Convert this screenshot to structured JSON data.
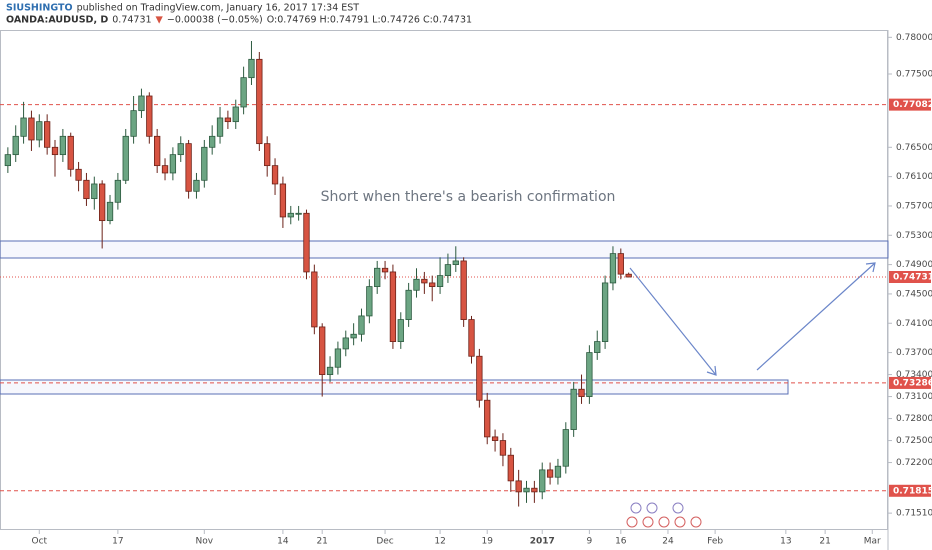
{
  "chart_data": {
    "type": "candlestick",
    "header": {
      "author": "SIUSHINGTO",
      "published": "published on TradingView.com, January 16, 2017 17:34 EST",
      "symbol": "OANDA:AUDUSD, D",
      "last": "0.74731",
      "arrow": "▼",
      "change": "−0.00038 (−0.05%)",
      "ohlc": "O:0.74769 H:0.74791 L:0.74726 C:0.74731"
    },
    "annotation": "Short when there's a bearish confirmation",
    "categories": [
      null,
      null,
      null,
      null,
      "Oct",
      null,
      null,
      null,
      null,
      null,
      null,
      null,
      null,
      null,
      "17",
      null,
      null,
      null,
      null,
      null,
      null,
      null,
      null,
      null,
      null,
      "Nov",
      null,
      null,
      null,
      null,
      null,
      null,
      null,
      null,
      null,
      "14",
      null,
      null,
      null,
      null,
      "21",
      null,
      null,
      null,
      null,
      null,
      null,
      null,
      "Dec",
      null,
      null,
      null,
      null,
      null,
      null,
      "12",
      null,
      null,
      null,
      null,
      null,
      "19",
      null,
      null,
      null,
      null,
      null,
      null,
      "2017",
      null,
      null,
      null,
      null,
      null,
      "9",
      null,
      null,
      null,
      "16",
      null,
      null,
      null,
      null,
      null,
      "24",
      null,
      null,
      null,
      null,
      null,
      "Feb",
      null,
      null,
      null,
      null,
      null,
      null,
      null,
      null,
      "13",
      null,
      null,
      null,
      null,
      "21",
      null,
      null,
      null,
      null,
      null,
      "Mar",
      null
    ],
    "open": [
      0.7625,
      0.764,
      0.7665,
      0.769,
      0.766,
      0.7685,
      0.765,
      0.764,
      0.7665,
      0.762,
      0.7605,
      0.758,
      0.76,
      0.755,
      0.7575,
      0.7605,
      0.7665,
      0.77,
      0.772,
      0.7665,
      0.7625,
      0.7615,
      0.764,
      0.7655,
      0.759,
      0.7605,
      0.765,
      0.7665,
      0.769,
      0.7685,
      0.7705,
      0.7745,
      0.777,
      0.7655,
      0.7625,
      0.76,
      0.7555,
      0.756,
      0.756,
      0.748,
      0.7405,
      0.734,
      0.735,
      0.7375,
      0.739,
      0.7395,
      0.742,
      0.746,
      0.7485,
      0.748,
      0.7385,
      0.7415,
      0.7455,
      0.747,
      0.7465,
      0.746,
      0.7475,
      0.749,
      0.7495,
      0.7415,
      0.7365,
      0.7305,
      0.7255,
      0.725,
      0.723,
      0.7195,
      0.718,
      0.7185,
      0.718,
      0.721,
      0.72,
      0.7215,
      0.7265,
      0.732,
      0.731,
      0.737,
      0.7385,
      0.7465,
      0.7505,
      0.74769,
      null,
      null,
      null,
      null,
      null,
      null,
      null,
      null,
      null,
      null,
      null,
      null,
      null,
      null,
      null,
      null,
      null,
      null,
      null,
      null,
      null,
      null,
      null,
      null,
      null,
      null,
      null,
      null,
      null,
      null,
      null,
      null
    ],
    "high": [
      0.765,
      0.768,
      0.7712,
      0.77,
      0.7695,
      0.7695,
      0.766,
      0.7675,
      0.767,
      0.763,
      0.7615,
      0.761,
      0.7605,
      0.7585,
      0.7615,
      0.7675,
      0.772,
      0.773,
      0.7725,
      0.7675,
      0.7635,
      0.765,
      0.7665,
      0.766,
      0.7615,
      0.766,
      0.768,
      0.7705,
      0.77,
      0.7715,
      0.776,
      0.7795,
      0.778,
      0.7665,
      0.7635,
      0.761,
      0.757,
      0.757,
      0.7565,
      0.749,
      0.741,
      0.7365,
      0.7385,
      0.74,
      0.741,
      0.743,
      0.747,
      0.7495,
      0.7495,
      0.749,
      0.7425,
      0.7465,
      0.7485,
      0.748,
      0.7475,
      0.75,
      0.7505,
      0.7515,
      0.75,
      0.742,
      0.7375,
      0.7315,
      0.7265,
      0.726,
      0.724,
      0.721,
      0.7195,
      0.7195,
      0.722,
      0.722,
      0.7225,
      0.7275,
      0.733,
      0.734,
      0.738,
      0.74,
      0.7475,
      0.7515,
      0.7512,
      0.74791,
      null,
      null,
      null,
      null,
      null,
      null,
      null,
      null,
      null,
      null,
      null,
      null,
      null,
      null,
      null,
      null,
      null,
      null,
      null,
      null,
      null,
      null,
      null,
      null,
      null,
      null,
      null,
      null,
      null,
      null,
      null,
      null
    ],
    "low": [
      0.7615,
      0.763,
      0.7655,
      0.7645,
      0.765,
      0.764,
      0.761,
      0.763,
      0.761,
      0.759,
      0.757,
      0.7565,
      0.7512,
      0.7545,
      0.7565,
      0.76,
      0.7655,
      0.769,
      0.7655,
      0.7615,
      0.7605,
      0.7605,
      0.763,
      0.758,
      0.758,
      0.7595,
      0.764,
      0.7655,
      0.7675,
      0.7675,
      0.7695,
      0.7735,
      0.7645,
      0.761,
      0.7585,
      0.754,
      0.7545,
      0.755,
      0.747,
      0.7395,
      0.731,
      0.733,
      0.734,
      0.7365,
      0.738,
      0.7385,
      0.741,
      0.745,
      0.747,
      0.7375,
      0.7375,
      0.7405,
      0.7445,
      0.745,
      0.744,
      0.745,
      0.7465,
      0.748,
      0.7405,
      0.7355,
      0.7295,
      0.7245,
      0.7235,
      0.7215,
      0.718,
      0.716,
      0.7165,
      0.7165,
      0.717,
      0.719,
      0.719,
      0.7205,
      0.7255,
      0.73,
      0.73,
      0.736,
      0.7375,
      0.7455,
      0.747,
      0.74726,
      null,
      null,
      null,
      null,
      null,
      null,
      null,
      null,
      null,
      null,
      null,
      null,
      null,
      null,
      null,
      null,
      null,
      null,
      null,
      null,
      null,
      null,
      null,
      null,
      null,
      null,
      null,
      null,
      null,
      null,
      null,
      null
    ],
    "close": [
      0.764,
      0.7665,
      0.769,
      0.766,
      0.7685,
      0.765,
      0.764,
      0.7665,
      0.762,
      0.7605,
      0.758,
      0.76,
      0.755,
      0.7575,
      0.7605,
      0.7665,
      0.77,
      0.772,
      0.7665,
      0.7625,
      0.7615,
      0.764,
      0.7655,
      0.759,
      0.7605,
      0.765,
      0.7665,
      0.769,
      0.7685,
      0.7705,
      0.7745,
      0.777,
      0.7655,
      0.7625,
      0.76,
      0.7555,
      0.756,
      0.756,
      0.748,
      0.7405,
      0.734,
      0.735,
      0.7375,
      0.739,
      0.7395,
      0.742,
      0.746,
      0.7485,
      0.748,
      0.7385,
      0.7415,
      0.7455,
      0.747,
      0.7465,
      0.746,
      0.7475,
      0.749,
      0.7495,
      0.7415,
      0.7365,
      0.7305,
      0.7255,
      0.725,
      0.723,
      0.7195,
      0.718,
      0.7185,
      0.718,
      0.721,
      0.72,
      0.7215,
      0.7265,
      0.732,
      0.731,
      0.737,
      0.7385,
      0.7465,
      0.7505,
      0.7477,
      0.74731,
      null,
      null,
      null,
      null,
      null,
      null,
      null,
      null,
      null,
      null,
      null,
      null,
      null,
      null,
      null,
      null,
      null,
      null,
      null,
      null,
      null,
      null,
      null,
      null,
      null,
      null,
      null,
      null,
      null,
      null,
      null,
      null
    ],
    "up_color": "#6ca583",
    "down_color": "#d75442",
    "ylim": [
      0.7128,
      0.781
    ],
    "yticks": [
      {
        "value": 0.78,
        "label": "0.78000"
      },
      {
        "value": 0.775,
        "label": "0.77500"
      },
      {
        "value": 0.765,
        "label": "0.76500"
      },
      {
        "value": 0.761,
        "label": "0.76100"
      },
      {
        "value": 0.757,
        "label": "0.75700"
      },
      {
        "value": 0.753,
        "label": "0.75300"
      },
      {
        "value": 0.749,
        "label": "0.74900"
      },
      {
        "value": 0.745,
        "label": "0.74500"
      },
      {
        "value": 0.741,
        "label": "0.74100"
      },
      {
        "value": 0.737,
        "label": "0.73700"
      },
      {
        "value": 0.734,
        "label": "0.73400"
      },
      {
        "value": 0.731,
        "label": "0.73100"
      },
      {
        "value": 0.728,
        "label": "0.72800"
      },
      {
        "value": 0.725,
        "label": "0.72500"
      },
      {
        "value": 0.722,
        "label": "0.72200"
      },
      {
        "value": 0.7151,
        "label": "0.71510"
      }
    ],
    "price_lines": [
      {
        "value": 0.77082,
        "style": "dashed",
        "color": "#e0524b"
      },
      {
        "value": 0.74731,
        "style": "dotted",
        "color": "#e0524b"
      },
      {
        "value": 0.73286,
        "style": "dashed",
        "color": "#e0524b"
      },
      {
        "value": 0.71815,
        "style": "dashed",
        "color": "#e0524b"
      }
    ]
  }
}
